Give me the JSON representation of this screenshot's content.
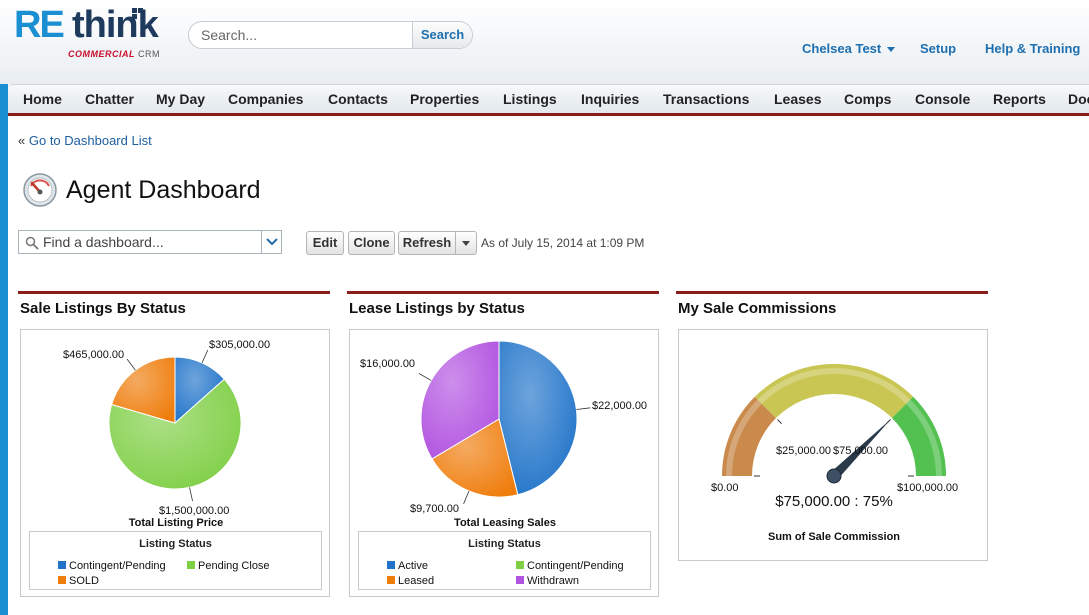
{
  "logo": {
    "part1": "RE",
    "part2": "think",
    "tagline_brand": "COMMERCIAL",
    "tagline_product": "CRM"
  },
  "search": {
    "placeholder": "Search...",
    "button_label": "Search"
  },
  "user_menu": {
    "name": "Chelsea Test"
  },
  "header_links": {
    "setup": "Setup",
    "help": "Help & Training"
  },
  "tabs": [
    "Home",
    "Chatter",
    "My Day",
    "Companies",
    "Contacts",
    "Properties",
    "Listings",
    "Inquiries",
    "Transactions",
    "Leases",
    "Comps",
    "Console",
    "Reports",
    "Doc"
  ],
  "back_link": {
    "prefix": "«",
    "label": "Go to Dashboard List"
  },
  "page_title": "Agent Dashboard",
  "find_dashboard": {
    "placeholder": "Find a dashboard..."
  },
  "toolbar": {
    "edit_label": "Edit",
    "clone_label": "Clone",
    "refresh_label": "Refresh",
    "as_of": "As of July 15, 2014 at 1:09 PM"
  },
  "components": [
    {
      "title": "Sale Listings By Status",
      "chart_data": {
        "type": "pie",
        "slices": [
          {
            "label": "Contingent/Pending",
            "value": 305000,
            "display": "$305,000.00",
            "color": "#1f73c9"
          },
          {
            "label": "Pending Close",
            "value": 1500000,
            "display": "$1,500,000.00",
            "color": "#7fcf45"
          },
          {
            "label": "SOLD",
            "value": 465000,
            "display": "$465,000.00",
            "color": "#ef7d0c"
          }
        ],
        "caption": "Total Listing Price",
        "legend_title": "Listing Status",
        "legend_position": "bottom"
      }
    },
    {
      "title": "Lease Listings by Status",
      "chart_data": {
        "type": "pie",
        "slices": [
          {
            "label": "Active",
            "value": 22000,
            "display": "$22,000.00",
            "color": "#1f73c9"
          },
          {
            "label": "Contingent/Pending",
            "value": 0,
            "display": "",
            "color": "#7fcf45"
          },
          {
            "label": "Leased",
            "value": 9700,
            "display": "$9,700.00",
            "color": "#ef7d0c"
          },
          {
            "label": "Withdrawn",
            "value": 16000,
            "display": "$16,000.00",
            "color": "#b152e0"
          }
        ],
        "caption": "Total Leasing Sales",
        "legend_title": "Listing Status",
        "legend_position": "bottom"
      }
    },
    {
      "title": "My Sale Commissions",
      "chart_data": {
        "type": "gauge",
        "min": 0,
        "max": 100000,
        "value": 75000,
        "bands": [
          {
            "from": 0,
            "to": 25000,
            "color": "#c98a4b"
          },
          {
            "from": 25000,
            "to": 75000,
            "color": "#c9c653"
          },
          {
            "from": 75000,
            "to": 100000,
            "color": "#52c14f"
          }
        ],
        "tick_labels": [
          "$0.00",
          "$25,000.00",
          "$75,000.00",
          "$100,000.00"
        ],
        "value_label": "$75,000.00 : 75%",
        "caption": "Sum of Sale Commission"
      }
    }
  ]
}
